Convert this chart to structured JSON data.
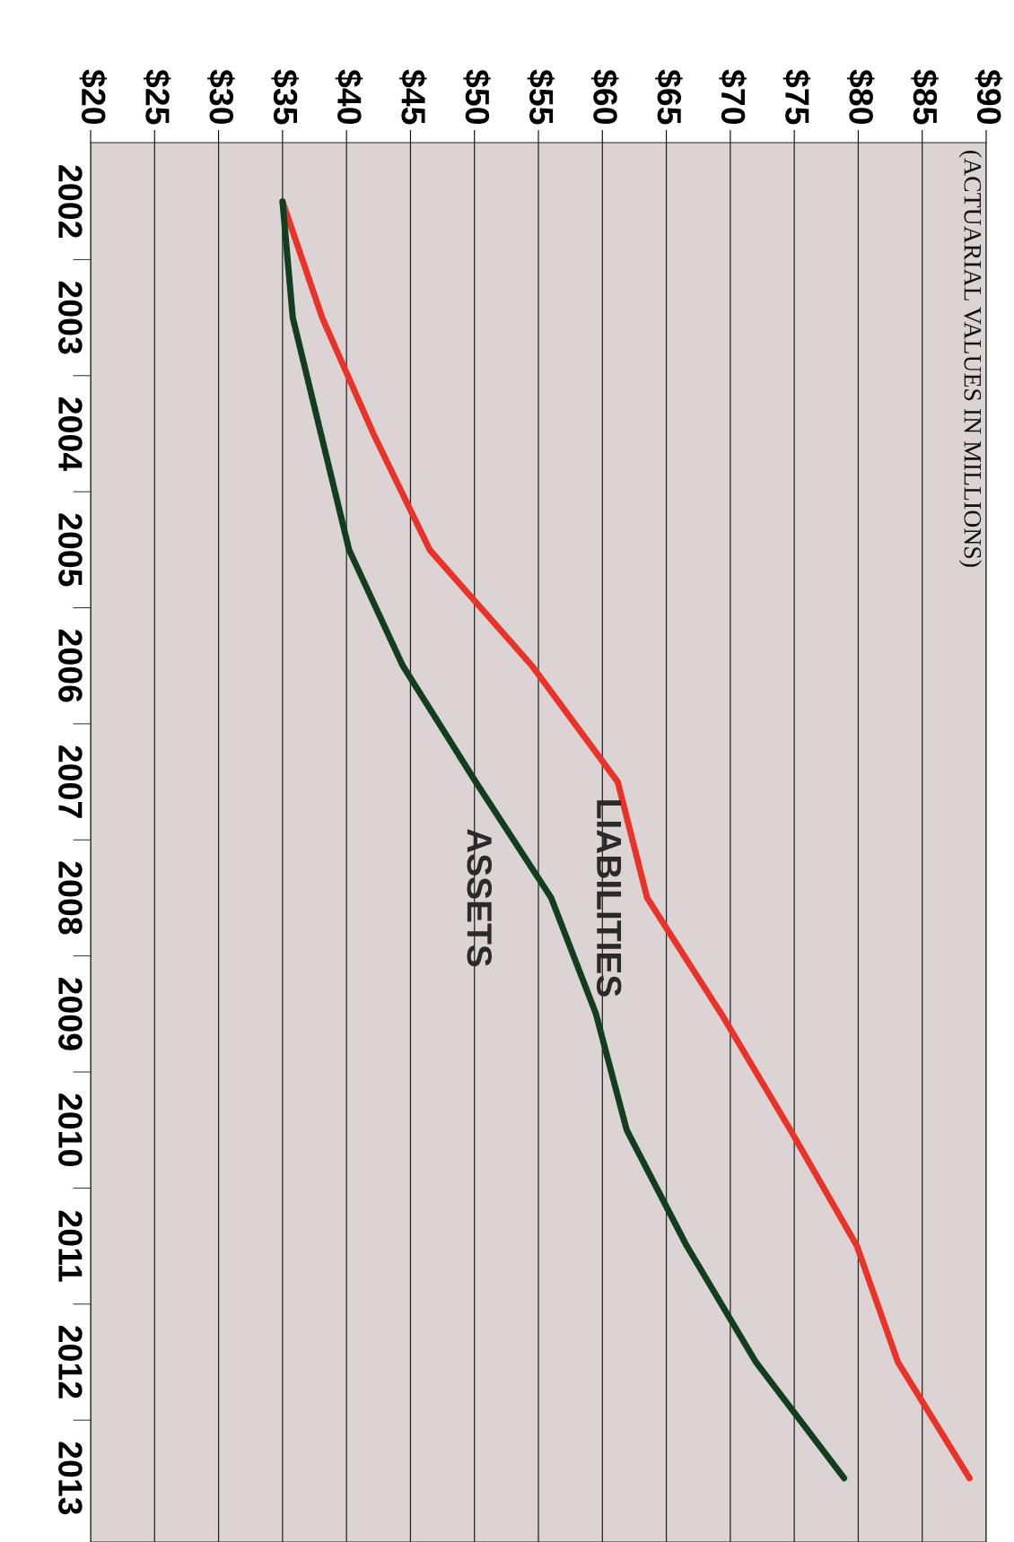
{
  "chart_data": {
    "type": "line",
    "orientation": "horizontal",
    "title": "(ACTUARIAL VALUES IN MILLIONS)",
    "categories": [
      "2002",
      "2003",
      "2004",
      "2005",
      "2006",
      "2007",
      "2008",
      "2009",
      "2010",
      "2011",
      "2012",
      "2013"
    ],
    "series": [
      {
        "name": "LIABILITIES",
        "color": "#e8332a",
        "values": [
          35.0,
          38.1,
          42.1,
          46.5,
          54.5,
          61.2,
          63.5,
          69.3,
          74.7,
          79.9,
          83.1,
          88.7
        ]
      },
      {
        "name": "ASSETS",
        "color": "#123d1e",
        "values": [
          35.0,
          35.8,
          38.0,
          40.2,
          44.4,
          50.1,
          56.0,
          59.5,
          61.9,
          66.6,
          72.0,
          78.9
        ]
      }
    ],
    "xlim": [
      20,
      90
    ],
    "xticks": [
      {
        "value": 20,
        "label": "$20"
      },
      {
        "value": 25,
        "label": "$25"
      },
      {
        "value": 30,
        "label": "$30"
      },
      {
        "value": 35,
        "label": "$35"
      },
      {
        "value": 40,
        "label": "$40"
      },
      {
        "value": 45,
        "label": "$45"
      },
      {
        "value": 50,
        "label": "$50"
      },
      {
        "value": 55,
        "label": "$55"
      },
      {
        "value": 60,
        "label": "$60"
      },
      {
        "value": 65,
        "label": "$65"
      },
      {
        "value": 70,
        "label": "$70"
      },
      {
        "value": 75,
        "label": "$75"
      },
      {
        "value": 80,
        "label": "$80"
      },
      {
        "value": 85,
        "label": "$85"
      },
      {
        "value": 90,
        "label": "$90"
      }
    ],
    "grid": "x",
    "legend": false,
    "marker": "none",
    "line_style": "solid"
  }
}
